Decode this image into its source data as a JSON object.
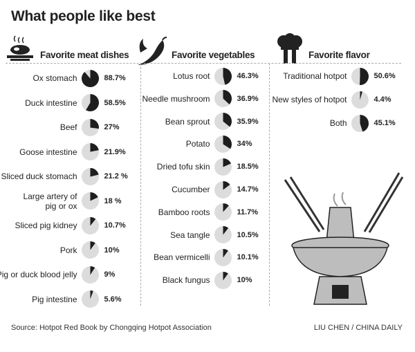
{
  "title": "What people like best",
  "colors": {
    "slice": "#1e1e1e",
    "rest": "#dcdcdc"
  },
  "chart_data": [
    {
      "type": "pie",
      "title": "Favorite meat dishes",
      "icon": "steak-icon",
      "categories": [
        "Ox stomach",
        "Duck intestine",
        "Beef",
        "Goose intestine",
        "Sliced duck stomach",
        "Large artery of pig or ox",
        "Sliced pig kidney",
        "Pork",
        "Pig or duck blood jelly",
        "Pig intestine"
      ],
      "values": [
        88.7,
        58.5,
        27,
        21.9,
        21.2,
        18,
        10.7,
        10,
        9,
        5.6
      ],
      "labels": [
        "88.7%",
        "58.5%",
        "27%",
        "21.9%",
        "21.2 %",
        "18 %",
        "10.7%",
        "10%",
        "9%",
        "5.6%"
      ]
    },
    {
      "type": "pie",
      "title": "Favorite vegetables",
      "icon": "chili-pepper-icon",
      "categories": [
        "Lotus root",
        "Needle mushroom",
        "Bean sprout",
        "Potato",
        "Dried tofu skin",
        "Cucumber",
        "Bamboo roots",
        "Sea tangle",
        "Bean vermicelli",
        "Black fungus"
      ],
      "values": [
        46.3,
        36.9,
        35.9,
        34,
        18.5,
        14.7,
        11.7,
        10.5,
        10.1,
        10
      ],
      "labels": [
        "46.3%",
        "36.9%",
        "35.9%",
        "34%",
        "18.5%",
        "14.7%",
        "11.7%",
        "10.5%",
        "10.1%",
        "10%"
      ]
    },
    {
      "type": "pie",
      "title": "Favorite flavor",
      "icon": "chef-hat-icon",
      "categories": [
        "Traditional hotpot",
        "New styles of hotpot",
        "Both"
      ],
      "values": [
        50.6,
        4.4,
        45.1
      ],
      "labels": [
        "50.6%",
        "4.4%",
        "45.1%"
      ]
    }
  ],
  "footer": {
    "source": "Source: Hotpot Red Book by Chongqing Hotpot Association",
    "credit": "LIU CHEN / CHINA DAILY"
  }
}
